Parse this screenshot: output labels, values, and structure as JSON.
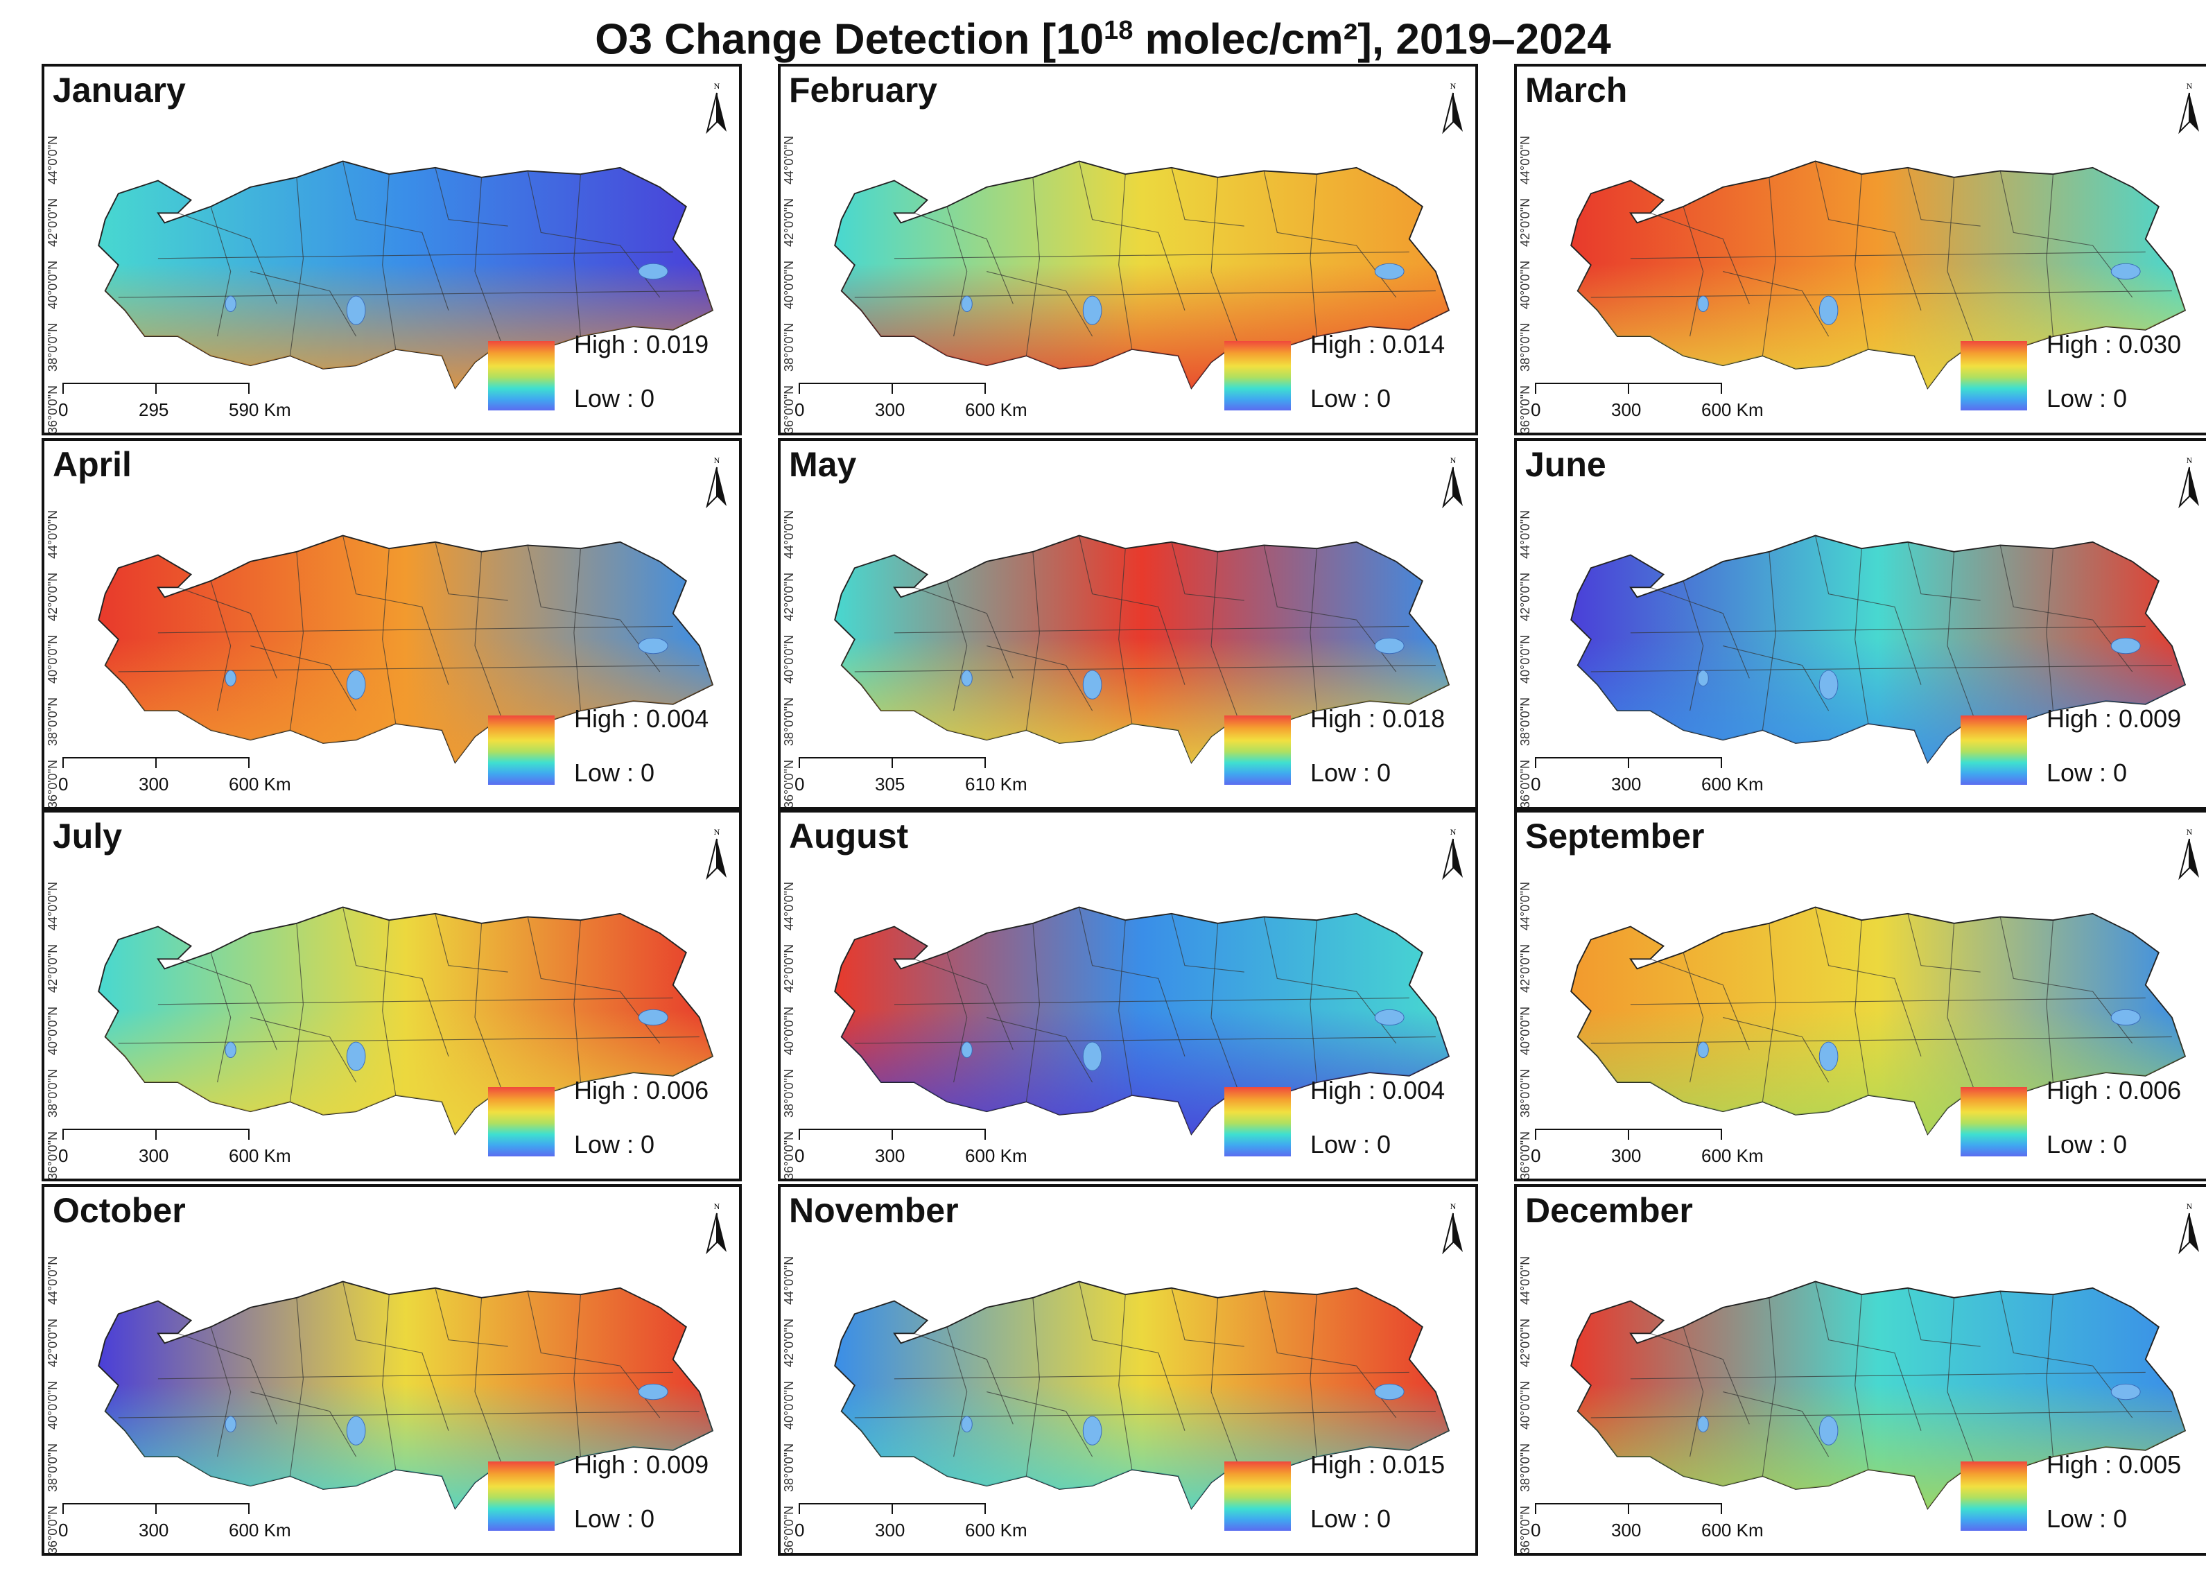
{
  "title": {
    "prefix": "O3  Change Detection [10",
    "superscript": "18",
    "suffix": " molec/cm²], 2019–2024"
  },
  "colors": {
    "red": "#e83a2c",
    "orange": "#f29a2e",
    "yellow": "#ecd83e",
    "green": "#a8d858",
    "cyan": "#48d8d0",
    "blue": "#3a8ee8",
    "deepblue": "#4a3fd8"
  },
  "latitude_labels": [
    "44°0'0\"N",
    "42°0'0\"N",
    "40°0'0\"N",
    "38°0'0\"N",
    "36°0'0\"N"
  ],
  "panels": [
    {
      "month": "January",
      "legend_high": "High : 0.019",
      "legend_low": "Low : 0",
      "scale": [
        "0",
        "295",
        "590 Km"
      ],
      "west": "cyan",
      "central": "blue",
      "east": "deepblue",
      "south": "orange"
    },
    {
      "month": "February",
      "legend_high": "High : 0.014",
      "legend_low": "Low : 0",
      "scale": [
        "0",
        "300",
        "600 Km"
      ],
      "west": "cyan",
      "central": "yellow",
      "east": "orange",
      "south": "red"
    },
    {
      "month": "March",
      "legend_high": "High : 0.030",
      "legend_low": "Low : 0",
      "scale": [
        "0",
        "300",
        "600 Km"
      ],
      "west": "red",
      "central": "orange",
      "east": "cyan",
      "south": "yellow"
    },
    {
      "month": "April",
      "legend_high": "High : 0.004",
      "legend_low": "Low : 0",
      "scale": [
        "0",
        "300",
        "600 Km"
      ],
      "west": "red",
      "central": "orange",
      "east": "blue",
      "south": "orange"
    },
    {
      "month": "May",
      "legend_high": "High : 0.018",
      "legend_low": "Low : 0",
      "scale": [
        "0",
        "305",
        "610 Km"
      ],
      "west": "cyan",
      "central": "red",
      "east": "blue",
      "south": "yellow"
    },
    {
      "month": "June",
      "legend_high": "High : 0.009",
      "legend_low": "Low : 0",
      "scale": [
        "0",
        "300",
        "600 Km"
      ],
      "west": "deepblue",
      "central": "cyan",
      "east": "red",
      "south": "blue"
    },
    {
      "month": "July",
      "legend_high": "High : 0.006",
      "legend_low": "Low : 0",
      "scale": [
        "0",
        "300",
        "600 Km"
      ],
      "west": "cyan",
      "central": "yellow",
      "east": "red",
      "south": "yellow"
    },
    {
      "month": "August",
      "legend_high": "High : 0.004",
      "legend_low": "Low : 0",
      "scale": [
        "0",
        "300",
        "600 Km"
      ],
      "west": "red",
      "central": "blue",
      "east": "cyan",
      "south": "deepblue"
    },
    {
      "month": "September",
      "legend_high": "High : 0.006",
      "legend_low": "Low : 0",
      "scale": [
        "0",
        "300",
        "600 Km"
      ],
      "west": "orange",
      "central": "yellow",
      "east": "blue",
      "south": "green"
    },
    {
      "month": "October",
      "legend_high": "High : 0.009",
      "legend_low": "Low : 0",
      "scale": [
        "0",
        "300",
        "600 Km"
      ],
      "west": "deepblue",
      "central": "yellow",
      "east": "red",
      "south": "cyan"
    },
    {
      "month": "November",
      "legend_high": "High : 0.015",
      "legend_low": "Low : 0",
      "scale": [
        "0",
        "300",
        "600 Km"
      ],
      "west": "blue",
      "central": "yellow",
      "east": "red",
      "south": "cyan"
    },
    {
      "month": "December",
      "legend_high": "High : 0.005",
      "legend_low": "Low : 0",
      "scale": [
        "0",
        "300",
        "600 Km"
      ],
      "west": "red",
      "central": "cyan",
      "east": "blue",
      "south": "green"
    }
  ]
}
